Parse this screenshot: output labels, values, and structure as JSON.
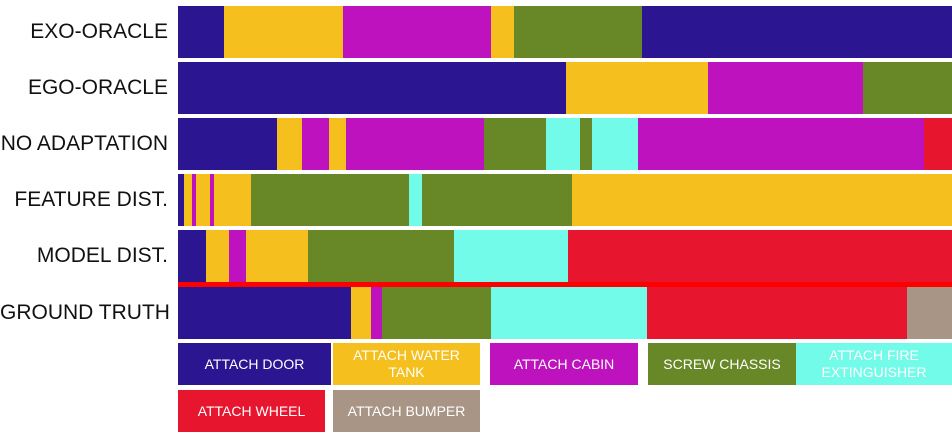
{
  "colors": {
    "ATTACH DOOR": "#2b1591",
    "ATTACH WATER TANK": "#f5bf1d",
    "ATTACH CABIN": "#be12be",
    "SCREW CHASSIS": "#688726",
    "ATTACH FIRE EXTINGUISHER": "#72fbe8",
    "ATTACH WHEEL": "#e8152f",
    "ATTACH BUMPER": "#a89585"
  },
  "chart_data": {
    "type": "segmentation-timeline",
    "x_unit": "fraction of video",
    "rows": [
      {
        "label": "EXO-ORACLE",
        "segments": [
          {
            "action": "ATTACH DOOR",
            "start": 0.0,
            "end": 0.06
          },
          {
            "action": "ATTACH WATER TANK",
            "start": 0.06,
            "end": 0.213
          },
          {
            "action": "ATTACH CABIN",
            "start": 0.213,
            "end": 0.405
          },
          {
            "action": "ATTACH WATER TANK",
            "start": 0.405,
            "end": 0.434
          },
          {
            "action": "SCREW CHASSIS",
            "start": 0.434,
            "end": 0.6
          },
          {
            "action": "ATTACH DOOR",
            "start": 0.6,
            "end": 1.0
          }
        ]
      },
      {
        "label": "EGO-ORACLE",
        "segments": [
          {
            "action": "ATTACH DOOR",
            "start": 0.0,
            "end": 0.501
          },
          {
            "action": "ATTACH WATER TANK",
            "start": 0.501,
            "end": 0.685
          },
          {
            "action": "ATTACH CABIN",
            "start": 0.685,
            "end": 0.885
          },
          {
            "action": "SCREW CHASSIS",
            "start": 0.885,
            "end": 1.0
          }
        ]
      },
      {
        "label": "NO ADAPTATION",
        "segments": [
          {
            "action": "ATTACH DOOR",
            "start": 0.0,
            "end": 0.128
          },
          {
            "action": "ATTACH WATER TANK",
            "start": 0.128,
            "end": 0.16
          },
          {
            "action": "ATTACH CABIN",
            "start": 0.16,
            "end": 0.195
          },
          {
            "action": "ATTACH WATER TANK",
            "start": 0.195,
            "end": 0.217
          },
          {
            "action": "ATTACH CABIN",
            "start": 0.217,
            "end": 0.395
          },
          {
            "action": "SCREW CHASSIS",
            "start": 0.395,
            "end": 0.475
          },
          {
            "action": "ATTACH FIRE EXTINGUISHER",
            "start": 0.475,
            "end": 0.519
          },
          {
            "action": "SCREW CHASSIS",
            "start": 0.519,
            "end": 0.535
          },
          {
            "action": "ATTACH FIRE EXTINGUISHER",
            "start": 0.535,
            "end": 0.594
          },
          {
            "action": "ATTACH CABIN",
            "start": 0.594,
            "end": 0.964
          },
          {
            "action": "ATTACH WHEEL",
            "start": 0.964,
            "end": 1.0
          }
        ]
      },
      {
        "label": "FEATURE DIST.",
        "segments": [
          {
            "action": "ATTACH DOOR",
            "start": 0.0,
            "end": 0.008
          },
          {
            "action": "ATTACH WATER TANK",
            "start": 0.008,
            "end": 0.018
          },
          {
            "action": "ATTACH CABIN",
            "start": 0.018,
            "end": 0.023
          },
          {
            "action": "ATTACH WATER TANK",
            "start": 0.023,
            "end": 0.041
          },
          {
            "action": "ATTACH CABIN",
            "start": 0.041,
            "end": 0.047
          },
          {
            "action": "ATTACH WATER TANK",
            "start": 0.047,
            "end": 0.094
          },
          {
            "action": "SCREW CHASSIS",
            "start": 0.094,
            "end": 0.298
          },
          {
            "action": "ATTACH FIRE EXTINGUISHER",
            "start": 0.298,
            "end": 0.315
          },
          {
            "action": "SCREW CHASSIS",
            "start": 0.315,
            "end": 0.509
          },
          {
            "action": "ATTACH WATER TANK",
            "start": 0.509,
            "end": 1.0
          }
        ]
      },
      {
        "label": "MODEL DIST.",
        "segments": [
          {
            "action": "ATTACH DOOR",
            "start": 0.0,
            "end": 0.036
          },
          {
            "action": "ATTACH WATER TANK",
            "start": 0.036,
            "end": 0.066
          },
          {
            "action": "ATTACH CABIN",
            "start": 0.066,
            "end": 0.088
          },
          {
            "action": "ATTACH WATER TANK",
            "start": 0.088,
            "end": 0.168
          },
          {
            "action": "SCREW CHASSIS",
            "start": 0.168,
            "end": 0.357
          },
          {
            "action": "ATTACH FIRE EXTINGUISHER",
            "start": 0.357,
            "end": 0.504
          },
          {
            "action": "ATTACH WHEEL",
            "start": 0.504,
            "end": 1.0
          }
        ]
      },
      {
        "label": "GROUND TRUTH",
        "segments": [
          {
            "action": "ATTACH DOOR",
            "start": 0.0,
            "end": 0.223
          },
          {
            "action": "ATTACH WATER TANK",
            "start": 0.223,
            "end": 0.249
          },
          {
            "action": "ATTACH CABIN",
            "start": 0.249,
            "end": 0.263
          },
          {
            "action": "SCREW CHASSIS",
            "start": 0.263,
            "end": 0.405
          },
          {
            "action": "ATTACH FIRE EXTINGUISHER",
            "start": 0.405,
            "end": 0.606
          },
          {
            "action": "ATTACH WHEEL",
            "start": 0.606,
            "end": 0.942
          },
          {
            "action": "ATTACH BUMPER",
            "start": 0.942,
            "end": 1.0
          }
        ]
      }
    ],
    "legend": [
      {
        "key": "ATTACH DOOR",
        "lines": [
          "ATTACH DOOR"
        ]
      },
      {
        "key": "ATTACH WATER TANK",
        "lines": [
          "ATTACH WATER",
          "TANK"
        ]
      },
      {
        "key": "ATTACH CABIN",
        "lines": [
          "ATTACH CABIN"
        ]
      },
      {
        "key": "SCREW CHASSIS",
        "lines": [
          "SCREW CHASSIS"
        ]
      },
      {
        "key": "ATTACH FIRE EXTINGUISHER",
        "lines": [
          "ATTACH FIRE",
          "EXTINGUISHER"
        ]
      },
      {
        "key": "ATTACH WHEEL",
        "lines": [
          "ATTACH WHEEL"
        ]
      },
      {
        "key": "ATTACH BUMPER",
        "lines": [
          "ATTACH BUMPER"
        ]
      }
    ]
  }
}
